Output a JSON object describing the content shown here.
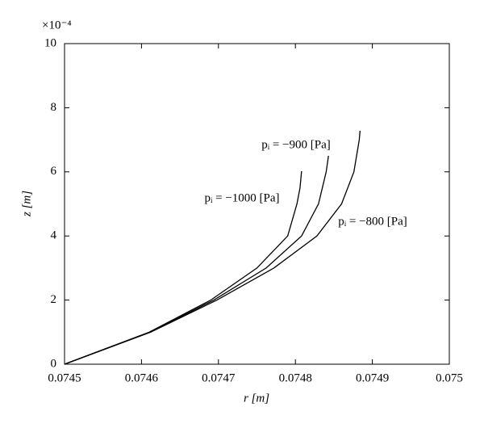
{
  "chart_data": {
    "type": "line",
    "x_label": "r [m]",
    "y_label": "z [m]",
    "y_multiplier": "×10⁻⁴",
    "xlim": [
      0.0745,
      0.075
    ],
    "xticks": [
      0.0745,
      0.0746,
      0.0747,
      0.0748,
      0.0749,
      0.075
    ],
    "ylim": [
      0,
      10
    ],
    "yticks": [
      0,
      2,
      4,
      6,
      8,
      10
    ],
    "color": "#000000",
    "series": [
      {
        "name": "pᵢ = −1000 [Pa]",
        "x": [
          0.0745,
          0.07461,
          0.07469,
          0.07475,
          0.07479,
          0.074802,
          0.074806,
          0.074808
        ],
        "values": [
          0,
          1,
          2,
          3,
          4,
          5,
          5.5,
          6.02
        ]
      },
      {
        "name": "pᵢ = −900 [Pa]",
        "x": [
          0.0745,
          0.074611,
          0.074694,
          0.074762,
          0.074808,
          0.07483,
          0.07484,
          0.074843
        ],
        "values": [
          0,
          1,
          2,
          3,
          4,
          5,
          6,
          6.5
        ]
      },
      {
        "name": "pᵢ = −800 [Pa]",
        "x": [
          0.0745,
          0.074612,
          0.074698,
          0.074772,
          0.074828,
          0.07486,
          0.074876,
          0.074883,
          0.074884
        ],
        "values": [
          0,
          1,
          2,
          3,
          4,
          5,
          6,
          7,
          7.28
        ]
      }
    ]
  }
}
